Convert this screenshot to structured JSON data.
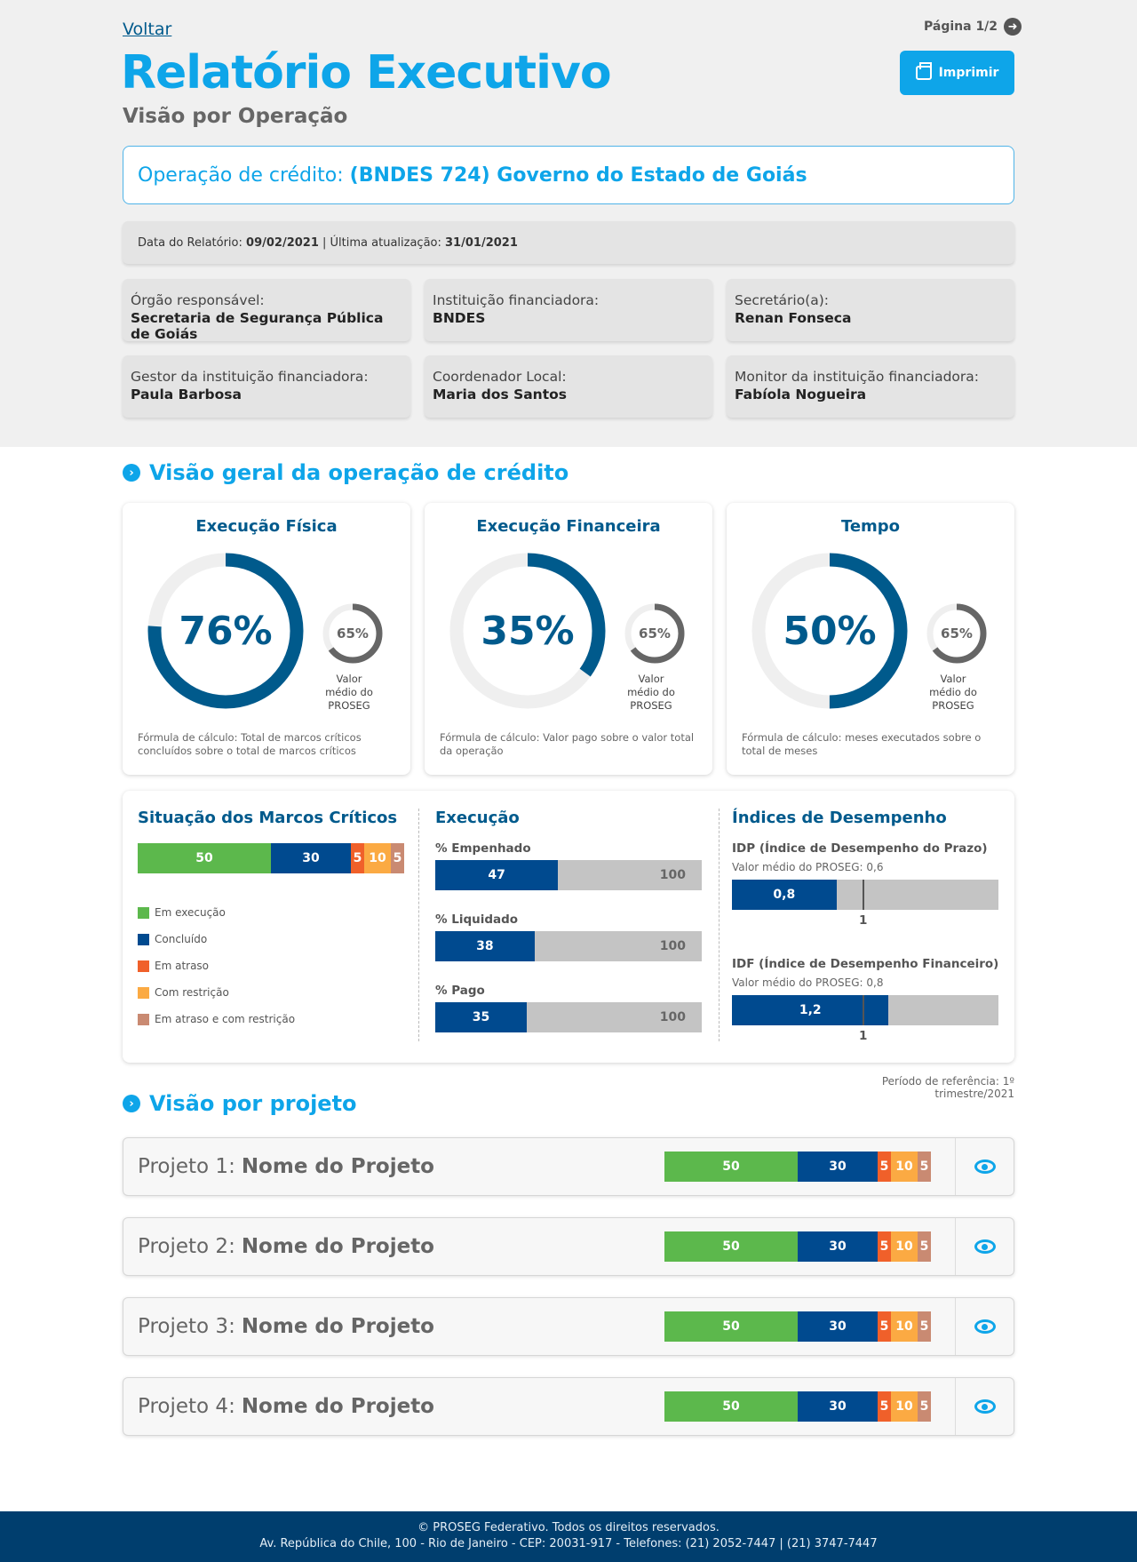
{
  "header": {
    "back_label": "Voltar",
    "page_label": "Página 1/2",
    "title": "Relatório Executivo",
    "subtitle": "Visão por Operação",
    "print_label": "Imprimir"
  },
  "operation": {
    "label": "Operação de crédito:",
    "name": "(BNDES 724) Governo do Estado de Goiás"
  },
  "dates": {
    "report_label": "Data do Relatório:",
    "report_date": "09/02/2021",
    "separator": " | ",
    "update_label": "Última atualização:",
    "update_date": "31/01/2021"
  },
  "info_cards": [
    {
      "label": "Órgão responsável:",
      "value": "Secretaria de Segurança Pública de Goiás"
    },
    {
      "label": "Instituição financiadora:",
      "value": "BNDES"
    },
    {
      "label": "Secretário(a):",
      "value": "Renan Fonseca"
    },
    {
      "label": "Gestor da instituição financiadora:",
      "value": "Paula Barbosa"
    },
    {
      "label": "Coordenador Local:",
      "value": "Maria dos Santos"
    },
    {
      "label": "Monitor da instituição financiadora:",
      "value": "Fabíola Nogueira"
    }
  ],
  "overview": {
    "heading": "Visão geral da operação de crédito",
    "gauges": [
      {
        "title": "Execução Física",
        "value": 76,
        "value_label": "76%",
        "avg": 65,
        "avg_label": "65%",
        "avg_caption": "Valor médio do PROSEG",
        "formula": "Fórmula de cálculo: Total de marcos críticos concluídos sobre o total de marcos críticos"
      },
      {
        "title": "Execução Financeira",
        "value": 35,
        "value_label": "35%",
        "avg": 65,
        "avg_label": "65%",
        "avg_caption": "Valor médio do PROSEG",
        "formula": "Fórmula de cálculo: Valor pago sobre o valor total da operação"
      },
      {
        "title": "Tempo",
        "value": 50,
        "value_label": "50%",
        "avg": 65,
        "avg_label": "65%",
        "avg_caption": "Valor médio do PROSEG",
        "formula": "Fórmula de cálculo: meses executados sobre o total de meses"
      }
    ]
  },
  "milestones": {
    "title": "Situação dos Marcos Críticos",
    "segments": [
      {
        "label": "Em execução",
        "value": 50,
        "color": "#5cb84c"
      },
      {
        "label": "Concluído",
        "value": 30,
        "color": "#004a8f"
      },
      {
        "label": "Em atraso",
        "value": 5,
        "color": "#f0602a"
      },
      {
        "label": "Com restrição",
        "value": 10,
        "color": "#fbaa43"
      },
      {
        "label": "Em atraso e com restrição",
        "value": 5,
        "color": "#c98a72"
      }
    ]
  },
  "execution": {
    "title": "Execução",
    "bars": [
      {
        "label": "% Empenhado",
        "value": 47,
        "total": 100
      },
      {
        "label": "% Liquidado",
        "value": 38,
        "total": 100
      },
      {
        "label": "% Pago",
        "value": 35,
        "total": 100
      }
    ]
  },
  "indices": {
    "title": "Índices de Desempenho",
    "items": [
      {
        "label": "IDP (Índice de Desempenho do Prazo)",
        "avg_label": "Valor médio do PROSEG: 0,6",
        "value": 0.8,
        "value_label": "0,8",
        "ref": 1,
        "ref_label": "1"
      },
      {
        "label": "IDF (Índice de Desempenho Financeiro)",
        "avg_label": "Valor médio do PROSEG: 0,8",
        "value": 1.2,
        "value_label": "1,2",
        "ref": 1,
        "ref_label": "1"
      }
    ]
  },
  "reference_period": "Período de referência: 1º trimestre/2021",
  "projects": {
    "heading": "Visão por projeto",
    "items": [
      {
        "prefix": "Projeto 1:",
        "name": "Nome do Projeto"
      },
      {
        "prefix": "Projeto 2:",
        "name": "Nome do Projeto"
      },
      {
        "prefix": "Projeto 3:",
        "name": "Nome do Projeto"
      },
      {
        "prefix": "Projeto 4:",
        "name": "Nome do Projeto"
      }
    ]
  },
  "footer": {
    "line1": "© PROSEG Federativo. Todos os direitos reservados.",
    "line2": "Av. República do Chile, 100 - Rio de Janeiro - CEP: 20031-917 - Telefones: (21) 2052-7447 | (21) 3747-7447"
  },
  "colors": {
    "accent": "#0ea5e9",
    "dark_blue": "#005a8c",
    "bar_blue": "#004a8f",
    "track": "#efefef",
    "grey_bar": "#c4c4c4"
  }
}
